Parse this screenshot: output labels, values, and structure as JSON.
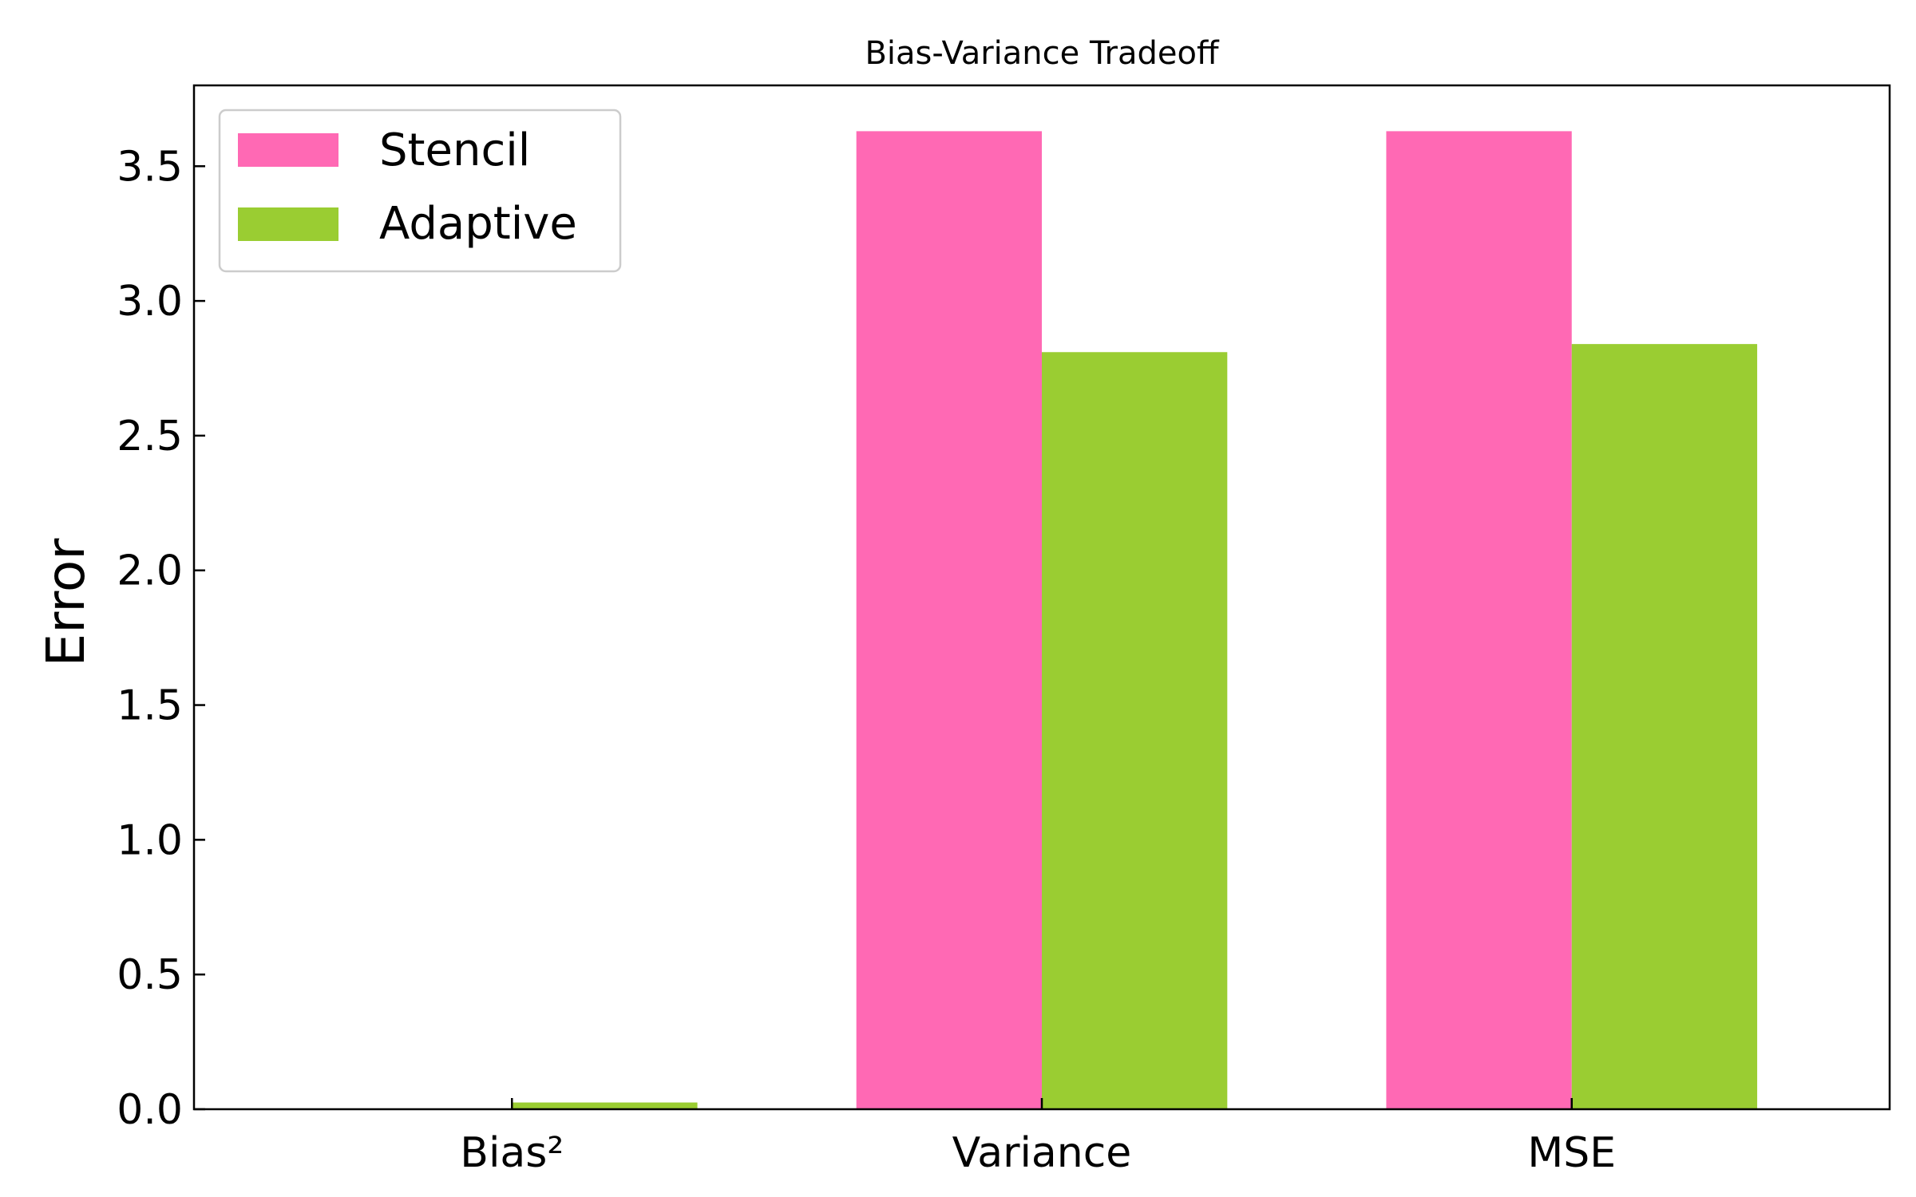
{
  "chart_data": {
    "type": "bar",
    "title": "Bias-Variance Tradeoff",
    "xlabel": "",
    "ylabel": "Error",
    "categories": [
      "Bias²",
      "Variance",
      "MSE"
    ],
    "series": [
      {
        "name": "Stencil",
        "color": "#ff69b4",
        "values": [
          0.0,
          3.63,
          3.63
        ]
      },
      {
        "name": "Adaptive",
        "color": "#9acd32",
        "values": [
          0.025,
          2.81,
          2.84
        ]
      }
    ],
    "ylim": [
      0,
      3.8
    ],
    "yticks": [
      "0.0",
      "0.5",
      "1.0",
      "1.5",
      "2.0",
      "2.5",
      "3.0",
      "3.5"
    ],
    "grid": false,
    "legend_position": "top-left"
  }
}
